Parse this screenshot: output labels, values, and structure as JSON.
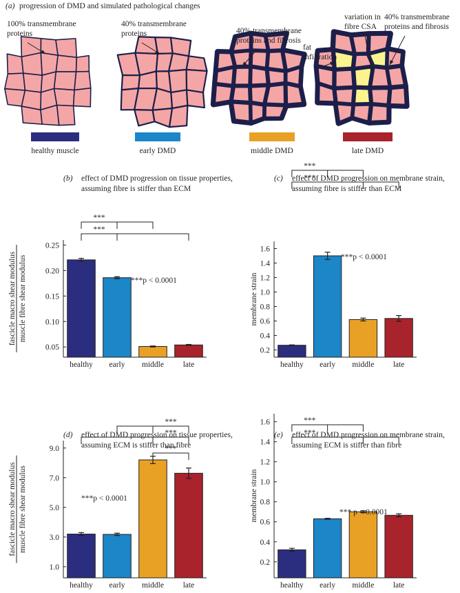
{
  "panel_a": {
    "label": "(a)",
    "title": "progression of DMD and simulated pathological changes",
    "stages": [
      {
        "name": "healthy muscle",
        "color": "#2b2e7f",
        "notes": [
          [
            "100% transmembrane",
            "proteins"
          ]
        ]
      },
      {
        "name": "early DMD",
        "color": "#1b86c8",
        "notes": [
          [
            "40% transmembrane",
            "proteins"
          ]
        ]
      },
      {
        "name": "middle DMD",
        "color": "#e9a125",
        "notes": [
          [
            "40% transmembrane",
            "proteins and fibrosis"
          ]
        ]
      },
      {
        "name": "late DMD",
        "color": "#a8232b",
        "notes": [
          [
            "fat",
            "infiltration"
          ],
          [
            "variation in",
            "fibre CSA"
          ],
          [
            "40% transmembrane",
            "proteins and fibrosis"
          ]
        ]
      }
    ]
  },
  "chart_data": [
    {
      "type": "bar",
      "panel": "(b)",
      "title": [
        "effect of DMD progression on tissue properties,",
        "assuming fibre is stiffer than ECM"
      ],
      "ylabel": [
        "fascicle macro shear modulus",
        "muscle fibre shear modulus"
      ],
      "categories": [
        "healthy",
        "early",
        "middle",
        "late"
      ],
      "values": [
        0.221,
        0.186,
        0.051,
        0.054
      ],
      "errors": [
        0.003,
        0.002,
        0.001,
        0.001
      ],
      "colors": [
        "#2b2e7f",
        "#1b86c8",
        "#e9a125",
        "#a8232b"
      ],
      "ylim": [
        0.03,
        0.26
      ],
      "yticks": [
        0.05,
        {
          "value": 0.1,
          "label": "0.10"
        },
        0.15,
        {
          "value": 0.2,
          "label": "0.20"
        },
        0.25
      ],
      "annotation": "***p < 0.0001",
      "significance": [
        "***",
        "***"
      ]
    },
    {
      "type": "bar",
      "panel": "(c)",
      "title": [
        "effect of DMD progression on membrane strain,",
        "assuming fibre is stiffer than ECM"
      ],
      "ylabel": [
        "membrane strain"
      ],
      "categories": [
        "healthy",
        "early",
        "middle",
        "late"
      ],
      "values": [
        0.265,
        1.5,
        0.62,
        0.635
      ],
      "errors": [
        0.005,
        0.05,
        0.02,
        0.04
      ],
      "colors": [
        "#2b2e7f",
        "#1b86c8",
        "#e9a125",
        "#a8232b"
      ],
      "ylim": [
        0.1,
        1.7
      ],
      "yticks": [
        0.2,
        0.4,
        0.6,
        0.8,
        {
          "value": 1,
          "label": "1.0"
        },
        1.2,
        1.4,
        1.6
      ],
      "annotation": "***p < 0.0001",
      "significance": [
        "***",
        "***"
      ]
    },
    {
      "type": "bar",
      "panel": "(d)",
      "title": [
        "effect of DMD progression on tissue properties,",
        "assuming ECM is stiffer than fibre"
      ],
      "ylabel": [
        "fascicle macro shear modulus",
        "muscle fibre shear modulus"
      ],
      "categories": [
        "healthy",
        "early",
        "middle",
        "late"
      ],
      "values": [
        3.2,
        3.18,
        8.2,
        7.3
      ],
      "errors": [
        0.1,
        0.08,
        0.25,
        0.35
      ],
      "colors": [
        "#2b2e7f",
        "#1b86c8",
        "#e9a125",
        "#a8232b"
      ],
      "ylim": [
        0.25,
        9.5
      ],
      "yticks": [
        {
          "value": 1,
          "label": "1.0"
        },
        {
          "value": 3,
          "label": "3.0"
        },
        {
          "value": 5,
          "label": "5.0"
        },
        {
          "value": 7,
          "label": "7.0"
        },
        {
          "value": 9,
          "label": "9.0"
        }
      ],
      "annotation": "***p < 0.0001",
      "significance": [
        "***",
        "***",
        "***"
      ]
    },
    {
      "type": "bar",
      "panel": "(e)",
      "title": [
        "effect of DMD progression on membrane strain,",
        "assuming ECM is stiffer than fibre"
      ],
      "ylabel": [
        "membrane strain"
      ],
      "categories": [
        "healthy",
        "early",
        "middle",
        "late"
      ],
      "values": [
        0.32,
        0.63,
        0.7,
        0.665
      ],
      "errors": [
        0.015,
        0.005,
        0.01,
        0.015
      ],
      "colors": [
        "#2b2e7f",
        "#1b86c8",
        "#e9a125",
        "#a8232b"
      ],
      "ylim": [
        0.04,
        1.68
      ],
      "yticks": [
        0.2,
        0.4,
        0.6,
        0.8,
        {
          "value": 1,
          "label": "1.0"
        },
        1.2,
        1.4,
        1.6
      ],
      "annotation": "*** p < 0.0001",
      "significance": [
        "***",
        "***"
      ]
    }
  ]
}
